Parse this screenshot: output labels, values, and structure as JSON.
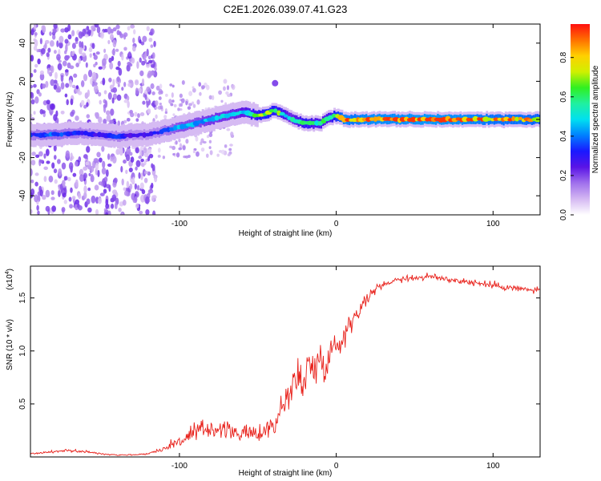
{
  "title": "C2E1.2026.039.07.41.G23",
  "chart_data": [
    {
      "type": "heatmap",
      "xlabel": "Height of straight line (km)",
      "ylabel": "Frequency (Hz)",
      "xlim": [
        -195,
        130
      ],
      "ylim": [
        -50,
        50
      ],
      "xticks": [
        -100,
        0,
        100
      ],
      "yticks": [
        -40,
        -20,
        0,
        20,
        40
      ],
      "colorbar": {
        "label": "Normalized spectral amplitude",
        "ticks": [
          "0.0",
          "0.2",
          "0.4",
          "0.6",
          "0.8"
        ],
        "tick_values": [
          0.0,
          0.2,
          0.4,
          0.6,
          0.8
        ],
        "range": [
          0,
          0.97
        ],
        "colors": [
          "#ffffff",
          "#d4b8f2",
          "#a070ec",
          "#5a14e6",
          "#1a18ff",
          "#0080ff",
          "#00e0f0",
          "#20f0a0",
          "#30f020",
          "#d0f000",
          "#ffd000",
          "#ff7000",
          "#ff1010"
        ]
      },
      "ridge": {
        "x": [
          -195,
          -180,
          -165,
          -150,
          -140,
          -130,
          -120,
          -110,
          -100,
          -90,
          -80,
          -70,
          -60,
          -50,
          -45,
          -40,
          -35,
          -30,
          -25,
          -20,
          -15,
          -10,
          -5,
          0,
          5,
          10,
          20,
          40,
          60,
          80,
          100,
          120,
          130
        ],
        "freq": [
          -8,
          -8,
          -7,
          -8,
          -9,
          -8,
          -8,
          -6,
          -4,
          -2,
          0,
          2,
          4,
          2,
          3,
          5,
          3,
          1,
          -1,
          -2,
          -2,
          -2,
          1,
          2,
          0,
          0,
          0,
          0,
          0,
          0,
          0,
          0,
          0
        ],
        "amplitude": [
          0.35,
          0.4,
          0.35,
          0.3,
          0.35,
          0.3,
          0.3,
          0.35,
          0.45,
          0.45,
          0.5,
          0.5,
          0.55,
          0.7,
          0.75,
          0.7,
          0.65,
          0.5,
          0.6,
          0.7,
          0.6,
          0.6,
          0.6,
          0.8,
          0.95,
          0.9,
          0.95,
          0.95,
          0.97,
          0.95,
          0.9,
          0.9,
          0.85
        ]
      }
    },
    {
      "type": "line",
      "xlabel": "Height of straight line (km)",
      "ylabel": "SNR (10 * v/v)",
      "multiplier": "(x10",
      "multiplier_exp": "4",
      "multiplier_close": ")",
      "xlim": [
        -195,
        130
      ],
      "ylim": [
        0,
        1.8
      ],
      "xticks": [
        -100,
        0,
        100
      ],
      "yticks": [
        0.5,
        1.0,
        1.5
      ],
      "ytick_labels": [
        "0.5",
        "1.0",
        "1.5"
      ],
      "line_color": "#e8201a",
      "series": [
        {
          "name": "SNR",
          "x": [
            -195,
            -180,
            -170,
            -160,
            -150,
            -140,
            -130,
            -120,
            -110,
            -100,
            -90,
            -80,
            -70,
            -60,
            -50,
            -40,
            -35,
            -30,
            -25,
            -20,
            -15,
            -10,
            -5,
            0,
            5,
            10,
            15,
            20,
            25,
            30,
            40,
            50,
            60,
            70,
            80,
            90,
            100,
            110,
            120,
            130
          ],
          "values": [
            0.03,
            0.05,
            0.06,
            0.05,
            0.03,
            0.02,
            0.02,
            0.03,
            0.08,
            0.15,
            0.22,
            0.28,
            0.25,
            0.22,
            0.22,
            0.3,
            0.45,
            0.6,
            0.72,
            0.8,
            0.85,
            0.9,
            0.95,
            1.05,
            1.15,
            1.3,
            1.4,
            1.5,
            1.58,
            1.63,
            1.68,
            1.69,
            1.7,
            1.68,
            1.66,
            1.64,
            1.62,
            1.6,
            1.58,
            1.57
          ]
        }
      ],
      "noise_amplitude": [
        0.01,
        0.02,
        0.02,
        0.02,
        0.01,
        0.01,
        0.01,
        0.01,
        0.04,
        0.1,
        0.15,
        0.15,
        0.12,
        0.1,
        0.12,
        0.18,
        0.22,
        0.28,
        0.32,
        0.35,
        0.3,
        0.3,
        0.28,
        0.25,
        0.2,
        0.15,
        0.1,
        0.08,
        0.06,
        0.05,
        0.05,
        0.05,
        0.05,
        0.05,
        0.05,
        0.05,
        0.05,
        0.05,
        0.05,
        0.05
      ]
    }
  ]
}
